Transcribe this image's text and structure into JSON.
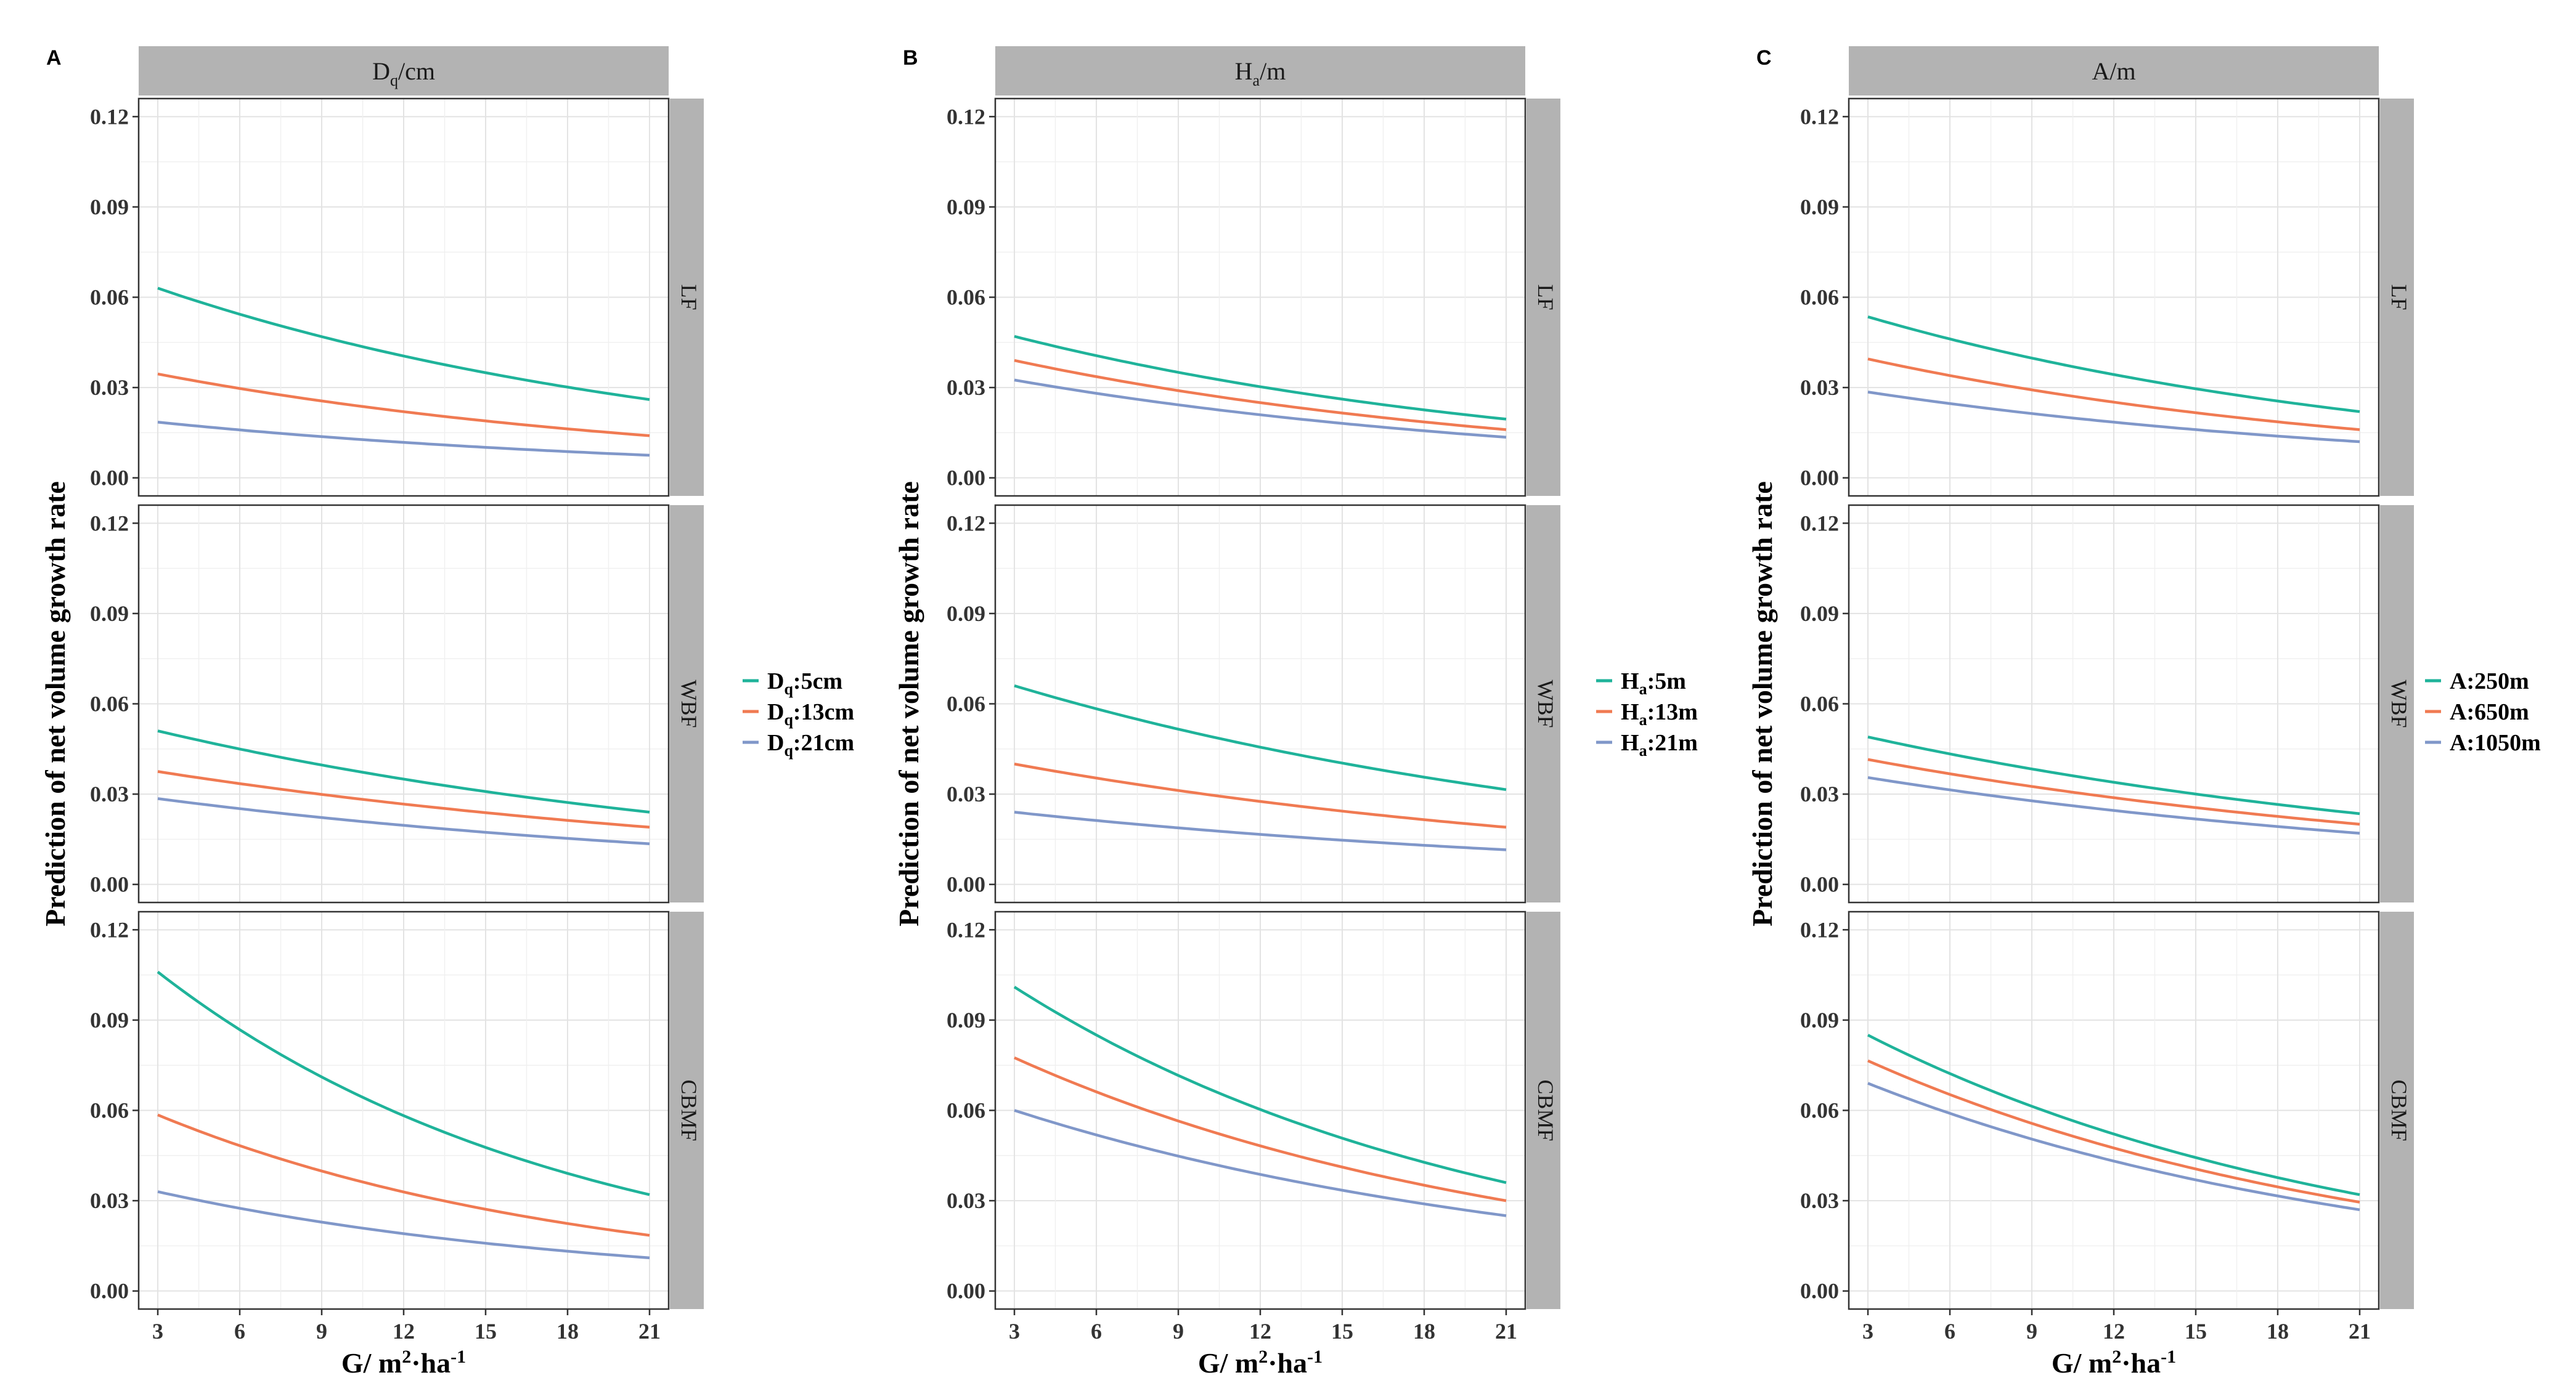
{
  "figure": {
    "panels": [
      {
        "letter": "A",
        "strip_main": "D",
        "strip_sub": "q",
        "strip_tail": "/cm",
        "legend": [
          {
            "main": "D",
            "sub": "q",
            "tail": ":5cm"
          },
          {
            "main": "D",
            "sub": "q",
            "tail": ":13cm"
          },
          {
            "main": "D",
            "sub": "q",
            "tail": ":21cm"
          }
        ]
      },
      {
        "letter": "B",
        "strip_main": "H",
        "strip_sub": "a",
        "strip_tail": "/m",
        "legend": [
          {
            "main": "H",
            "sub": "a",
            "tail": ":5m"
          },
          {
            "main": "H",
            "sub": "a",
            "tail": ":13m"
          },
          {
            "main": "H",
            "sub": "a",
            "tail": ":21m"
          }
        ]
      },
      {
        "letter": "C",
        "strip_main": "A/m",
        "strip_sub": "",
        "strip_tail": "",
        "legend": [
          {
            "main": "A:250m",
            "sub": "",
            "tail": ""
          },
          {
            "main": "A:650m",
            "sub": "",
            "tail": ""
          },
          {
            "main": "A:1050m",
            "sub": "",
            "tail": ""
          }
        ]
      }
    ],
    "row_labels": [
      "LF",
      "WBF",
      "CBMF"
    ],
    "y_title": "Prediction of net volume growth rate",
    "x_title_parts": {
      "a": "G/ m",
      "b": "2",
      "c": "·ha",
      "d": "-1"
    },
    "x_ticks": [
      "3",
      "6",
      "9",
      "12",
      "15",
      "18",
      "21"
    ],
    "y_ticks": [
      "0.00",
      "0.03",
      "0.06",
      "0.09",
      "0.12"
    ]
  },
  "chart_data": {
    "type": "line",
    "x": [
      3,
      21
    ],
    "xlim": [
      2.3,
      21.7
    ],
    "ylim": [
      -0.006,
      0.126
    ],
    "grid": true,
    "series_colors": [
      "#1fb39a",
      "#f07a52",
      "#8097c9"
    ],
    "facets": [
      {
        "panel": "A",
        "row": "LF",
        "series": [
          {
            "name": "Dq:5cm",
            "values": [
              0.063,
              0.026
            ]
          },
          {
            "name": "Dq:13cm",
            "values": [
              0.0345,
              0.014
            ]
          },
          {
            "name": "Dq:21cm",
            "values": [
              0.0185,
              0.0075
            ]
          }
        ]
      },
      {
        "panel": "A",
        "row": "WBF",
        "series": [
          {
            "name": "Dq:5cm",
            "values": [
              0.051,
              0.024
            ]
          },
          {
            "name": "Dq:13cm",
            "values": [
              0.0375,
              0.019
            ]
          },
          {
            "name": "Dq:21cm",
            "values": [
              0.0285,
              0.0135
            ]
          }
        ]
      },
      {
        "panel": "A",
        "row": "CBMF",
        "series": [
          {
            "name": "Dq:5cm",
            "values": [
              0.106,
              0.032
            ]
          },
          {
            "name": "Dq:13cm",
            "values": [
              0.0585,
              0.0185
            ]
          },
          {
            "name": "Dq:21cm",
            "values": [
              0.033,
              0.011
            ]
          }
        ]
      },
      {
        "panel": "B",
        "row": "LF",
        "series": [
          {
            "name": "Ha:5m",
            "values": [
              0.047,
              0.0195
            ]
          },
          {
            "name": "Ha:13m",
            "values": [
              0.039,
              0.016
            ]
          },
          {
            "name": "Ha:21m",
            "values": [
              0.0325,
              0.0135
            ]
          }
        ]
      },
      {
        "panel": "B",
        "row": "WBF",
        "series": [
          {
            "name": "Ha:5m",
            "values": [
              0.066,
              0.0315
            ]
          },
          {
            "name": "Ha:13m",
            "values": [
              0.04,
              0.019
            ]
          },
          {
            "name": "Ha:21m",
            "values": [
              0.024,
              0.0115
            ]
          }
        ]
      },
      {
        "panel": "B",
        "row": "CBMF",
        "series": [
          {
            "name": "Ha:5m",
            "values": [
              0.101,
              0.036
            ]
          },
          {
            "name": "Ha:13m",
            "values": [
              0.0775,
              0.03
            ]
          },
          {
            "name": "Ha:21m",
            "values": [
              0.06,
              0.025
            ]
          }
        ]
      },
      {
        "panel": "C",
        "row": "LF",
        "series": [
          {
            "name": "A:250m",
            "values": [
              0.0535,
              0.022
            ]
          },
          {
            "name": "A:650m",
            "values": [
              0.0395,
              0.016
            ]
          },
          {
            "name": "A:1050m",
            "values": [
              0.0285,
              0.012
            ]
          }
        ]
      },
      {
        "panel": "C",
        "row": "WBF",
        "series": [
          {
            "name": "A:250m",
            "values": [
              0.049,
              0.0235
            ]
          },
          {
            "name": "A:650m",
            "values": [
              0.0415,
              0.02
            ]
          },
          {
            "name": "A:1050m",
            "values": [
              0.0355,
              0.017
            ]
          }
        ]
      },
      {
        "panel": "C",
        "row": "CBMF",
        "series": [
          {
            "name": "A:250m",
            "values": [
              0.085,
              0.032
            ]
          },
          {
            "name": "A:650m",
            "values": [
              0.0765,
              0.0295
            ]
          },
          {
            "name": "A:1050m",
            "values": [
              0.069,
              0.027
            ]
          }
        ]
      }
    ]
  }
}
